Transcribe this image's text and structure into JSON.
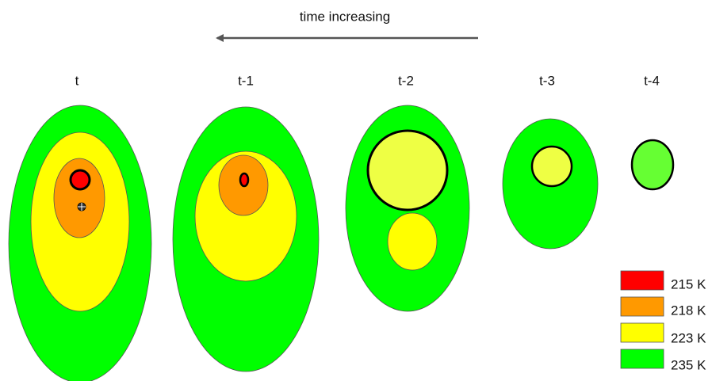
{
  "header": {
    "title": "time increasing"
  },
  "stages": [
    {
      "label": "t"
    },
    {
      "label": "t-1"
    },
    {
      "label": "t-2"
    },
    {
      "label": "t-3"
    },
    {
      "label": "t-4"
    }
  ],
  "legend": [
    {
      "label": "215 K"
    },
    {
      "label": "218 K"
    },
    {
      "label": "223 K"
    },
    {
      "label": "235 K"
    }
  ]
}
